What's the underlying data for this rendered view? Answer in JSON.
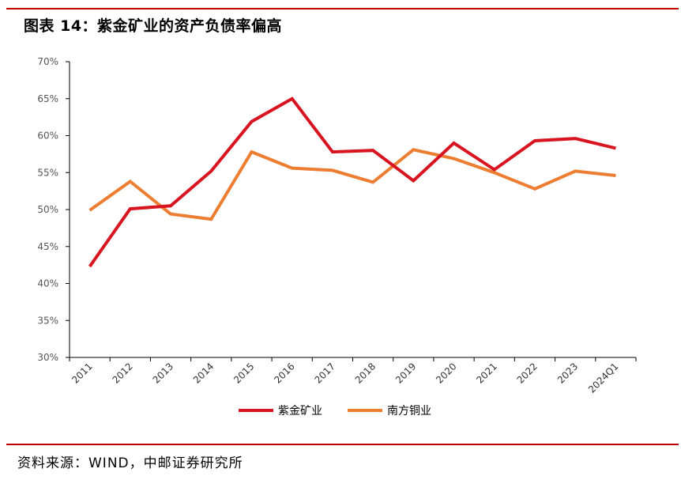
{
  "header": {
    "title": "图表 14：紫金矿业的资产负债率偏高"
  },
  "footer": {
    "source": "资料来源：WIND，中邮证券研究所"
  },
  "colors": {
    "accent_rule": "#c00000"
  },
  "chart_data": {
    "type": "line",
    "title": "",
    "xlabel": "",
    "ylabel": "",
    "categories": [
      "2011",
      "2012",
      "2013",
      "2014",
      "2015",
      "2016",
      "2017",
      "2018",
      "2019",
      "2020",
      "2021",
      "2022",
      "2023",
      "2024Q1"
    ],
    "ylim": [
      30,
      70
    ],
    "yticks": [
      "30%",
      "35%",
      "40%",
      "45%",
      "50%",
      "55%",
      "60%",
      "65%",
      "70%"
    ],
    "grid": false,
    "legend": "bottom",
    "series": [
      {
        "name": "紫金矿业",
        "color": "#d7141f",
        "values": [
          42.3,
          50.1,
          50.5,
          55.2,
          61.9,
          65.0,
          57.8,
          58.0,
          53.9,
          59.0,
          55.4,
          59.3,
          59.6,
          58.3
        ]
      },
      {
        "name": "南方铜业",
        "color": "#ed7d31",
        "values": [
          49.9,
          53.8,
          49.4,
          48.7,
          57.8,
          55.6,
          55.3,
          53.7,
          58.1,
          56.9,
          55.0,
          52.8,
          55.2,
          54.6
        ]
      }
    ]
  }
}
